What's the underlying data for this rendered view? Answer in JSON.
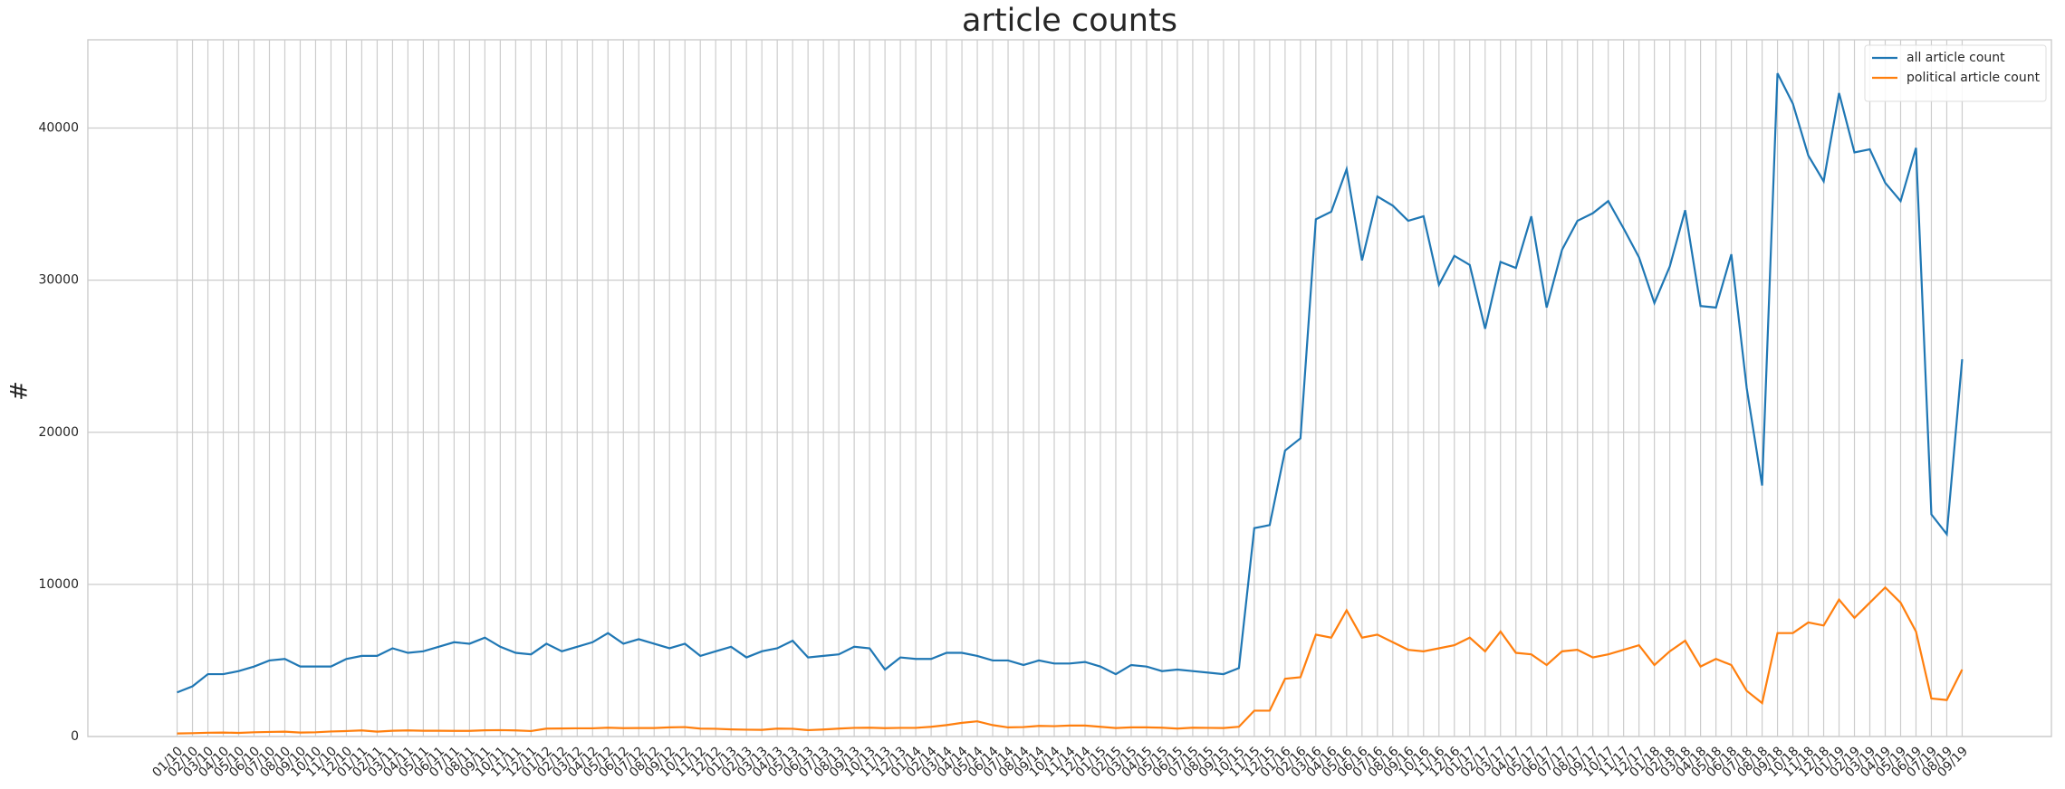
{
  "chart_data": {
    "type": "line",
    "title": "article counts",
    "y_label": "#",
    "categories": [
      "01/10",
      "02/10",
      "03/10",
      "04/10",
      "05/10",
      "06/10",
      "07/10",
      "08/10",
      "09/10",
      "10/10",
      "11/10",
      "12/10",
      "01/11",
      "02/11",
      "03/11",
      "04/11",
      "05/11",
      "06/11",
      "07/11",
      "08/11",
      "09/11",
      "10/11",
      "11/11",
      "12/11",
      "01/12",
      "02/12",
      "03/12",
      "04/12",
      "05/12",
      "06/12",
      "07/12",
      "08/12",
      "09/12",
      "10/12",
      "11/12",
      "12/12",
      "01/13",
      "02/13",
      "03/13",
      "04/13",
      "05/13",
      "06/13",
      "07/13",
      "08/13",
      "09/13",
      "10/13",
      "11/13",
      "12/13",
      "01/14",
      "02/14",
      "03/14",
      "04/14",
      "05/14",
      "06/14",
      "07/14",
      "08/14",
      "09/14",
      "10/14",
      "11/14",
      "12/14",
      "01/15",
      "02/15",
      "03/15",
      "04/15",
      "05/15",
      "06/15",
      "07/15",
      "08/15",
      "09/15",
      "10/15",
      "11/15",
      "12/15",
      "01/16",
      "02/16",
      "03/16",
      "04/16",
      "05/16",
      "06/16",
      "07/16",
      "08/16",
      "09/16",
      "10/16",
      "11/16",
      "12/16",
      "01/17",
      "02/17",
      "03/17",
      "04/17",
      "05/17",
      "06/17",
      "07/17",
      "08/17",
      "09/17",
      "10/17",
      "11/17",
      "12/17",
      "01/18",
      "02/18",
      "03/18",
      "04/18",
      "05/18",
      "06/18",
      "07/18",
      "08/18",
      "09/18",
      "10/18",
      "11/18",
      "12/18",
      "01/19",
      "02/19",
      "03/19",
      "04/19",
      "05/19",
      "06/19",
      "07/19",
      "08/19",
      "09/19"
    ],
    "series": [
      {
        "name": "all article count",
        "color": "#1f77b4",
        "values": [
          2900,
          3300,
          4100,
          4100,
          4300,
          4600,
          5000,
          5100,
          4600,
          4600,
          4600,
          5100,
          5300,
          5300,
          5800,
          5500,
          5600,
          5900,
          6200,
          6100,
          6500,
          5900,
          5500,
          5400,
          6100,
          5600,
          5900,
          6200,
          6800,
          6100,
          6400,
          6100,
          5800,
          6100,
          5300,
          5600,
          5900,
          5200,
          5600,
          5800,
          6300,
          5200,
          5300,
          5400,
          5900,
          5800,
          4400,
          5200,
          5100,
          5100,
          5500,
          5500,
          5300,
          5000,
          5000,
          4700,
          5000,
          4800,
          4800,
          4900,
          4600,
          4100,
          4700,
          4600,
          4300,
          4400,
          4300,
          4200,
          4100,
          4500,
          13700,
          13900,
          18800,
          19600,
          34000,
          34500,
          37300,
          31300,
          35500,
          34900,
          33900,
          34200,
          29700,
          31600,
          31000,
          26800,
          31200,
          30800,
          34200,
          28200,
          32000,
          33900,
          34400,
          35200,
          33400,
          31500,
          28500,
          30900,
          34600,
          28300,
          28200,
          31700,
          22900,
          16500,
          43600,
          41600,
          38200,
          36500,
          42300,
          38400,
          38600,
          36400,
          35200,
          38700,
          14600,
          13300,
          24800
        ]
      },
      {
        "name": "political article count",
        "color": "#ff7f0e",
        "values": [
          200,
          220,
          250,
          260,
          240,
          280,
          300,
          320,
          260,
          280,
          330,
          360,
          400,
          320,
          380,
          400,
          380,
          380,
          370,
          370,
          410,
          420,
          400,
          360,
          520,
          530,
          540,
          540,
          580,
          550,
          560,
          560,
          600,
          620,
          520,
          510,
          470,
          450,
          440,
          520,
          510,
          420,
          460,
          520,
          570,
          580,
          550,
          570,
          570,
          640,
          750,
          900,
          1000,
          750,
          600,
          620,
          700,
          680,
          720,
          720,
          640,
          560,
          600,
          600,
          580,
          520,
          580,
          570,
          560,
          640,
          1700,
          1700,
          3800,
          3900,
          6700,
          6500,
          8300,
          6500,
          6700,
          6200,
          5700,
          5600,
          5800,
          6000,
          6500,
          5600,
          6900,
          5500,
          5400,
          4700,
          5600,
          5700,
          5200,
          5400,
          5700,
          6000,
          4700,
          5600,
          6300,
          4600,
          5100,
          4700,
          3000,
          2200,
          6800,
          6800,
          7500,
          7300,
          9000,
          7800,
          8800,
          9800,
          8800,
          6900,
          2500,
          2400,
          4400
        ]
      }
    ],
    "ylim": [
      0,
      45800
    ],
    "yticks": [
      0,
      10000,
      20000,
      30000,
      40000
    ],
    "grid": true,
    "legend": "upper right"
  }
}
